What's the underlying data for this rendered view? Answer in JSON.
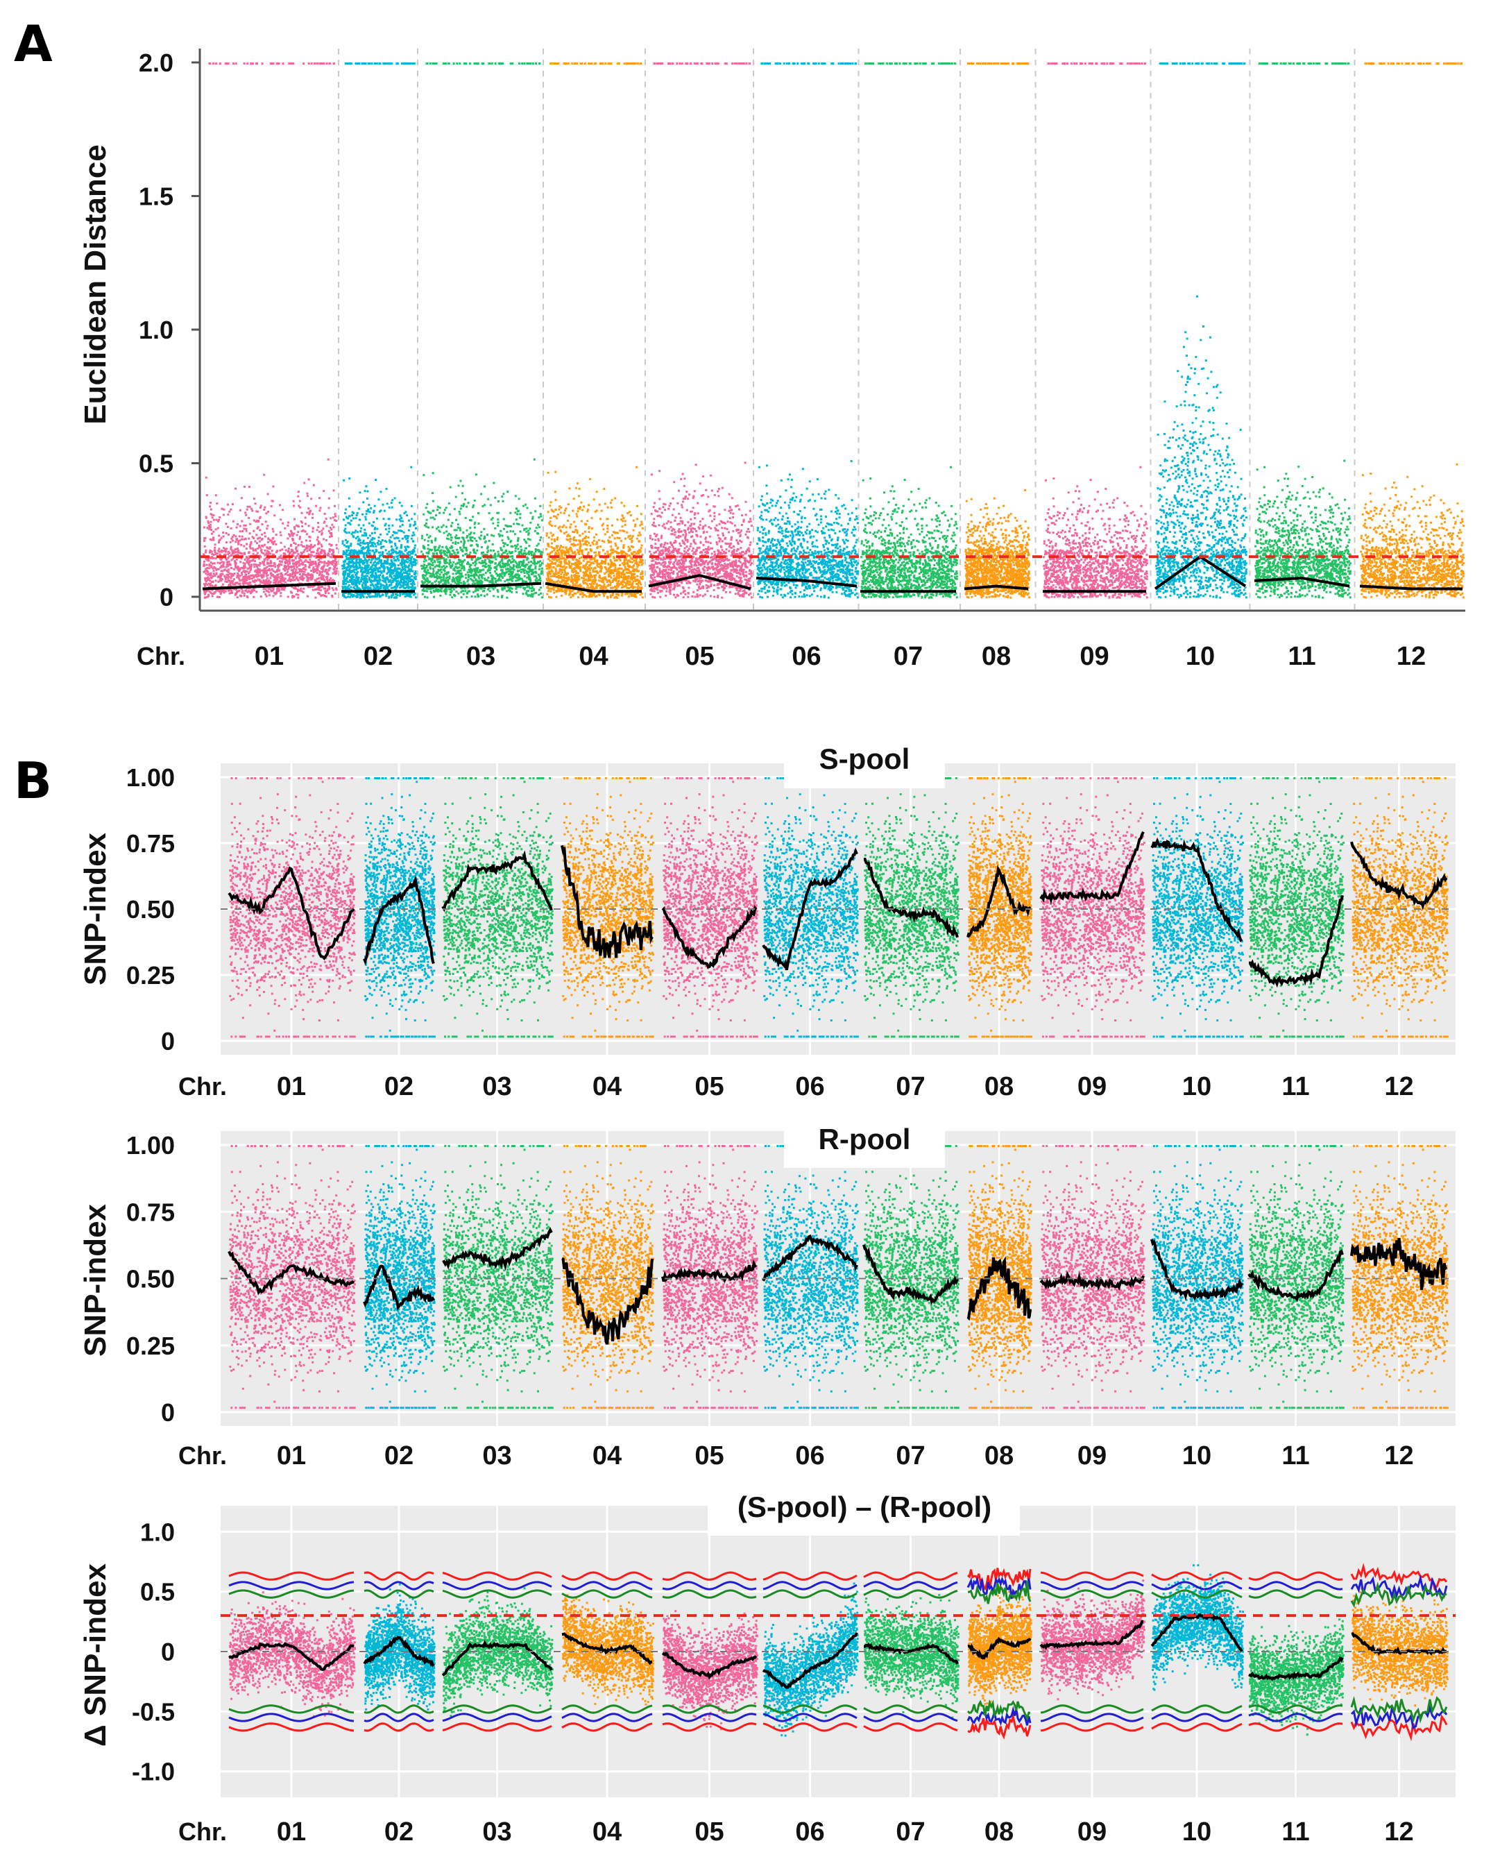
{
  "figure": {
    "colors": {
      "pink": "#f2669c",
      "cyan": "#00b7d8",
      "green": "#22c265",
      "orange": "#ff9b10",
      "red": "#ff1a1a",
      "blue": "#1f1fcf",
      "darkgreen": "#1a8a22",
      "black": "#000000",
      "threshold": "#e8281e",
      "panel_bg": "#ebebeb"
    }
  },
  "chart_data": [
    {
      "type": "scatter",
      "panel_letter": "A",
      "title": "",
      "ylabel": "Euclidean Distance",
      "xlabel_prefix": "Chr.",
      "ylim": [
        0,
        2.0
      ],
      "ytick_labels": [
        "2.0",
        "1.5",
        "1.0",
        "0.5",
        "0"
      ],
      "yticks": [
        2.0,
        1.5,
        1.0,
        0.5,
        0
      ],
      "threshold": 0.15,
      "categories": [
        "01",
        "02",
        "03",
        "04",
        "05",
        "06",
        "07",
        "08",
        "09",
        "10",
        "11",
        "12"
      ],
      "series": [
        {
          "name": "fit",
          "values": [
            [
              0.03,
              0.04,
              0.05
            ],
            [
              0.02,
              0.02,
              0.02
            ],
            [
              0.04,
              0.04,
              0.05
            ],
            [
              0.05,
              0.02,
              0.02
            ],
            [
              0.04,
              0.08,
              0.03
            ],
            [
              0.07,
              0.06,
              0.04
            ],
            [
              0.02,
              0.02,
              0.02
            ],
            [
              0.03,
              0.04,
              0.03
            ],
            [
              0.02,
              0.02,
              0.02
            ],
            [
              0.03,
              0.15,
              0.04
            ],
            [
              0.06,
              0.07,
              0.04
            ],
            [
              0.04,
              0.03,
              0.03
            ]
          ]
        }
      ]
    },
    {
      "type": "scatter",
      "panel_letter": "B",
      "title": "S-pool",
      "ylabel": "SNP-index",
      "xlabel_prefix": "Chr.",
      "ylim": [
        0,
        1.0
      ],
      "ytick_labels": [
        "1.00",
        "0.75",
        "0.50",
        "0.25",
        "0"
      ],
      "yticks": [
        1.0,
        0.75,
        0.5,
        0.25,
        0
      ],
      "categories": [
        "01",
        "02",
        "03",
        "04",
        "05",
        "06",
        "07",
        "08",
        "09",
        "10",
        "11",
        "12"
      ],
      "series": [
        {
          "name": "SNP-index fit",
          "values": [
            [
              0.55,
              0.5,
              0.65,
              0.3,
              0.5
            ],
            [
              0.3,
              0.5,
              0.55,
              0.6,
              0.3
            ],
            [
              0.5,
              0.65,
              0.65,
              0.7,
              0.5
            ],
            [
              0.75,
              0.4,
              0.35,
              0.4,
              0.4
            ],
            [
              0.5,
              0.35,
              0.28,
              0.4,
              0.5
            ],
            [
              0.35,
              0.28,
              0.6,
              0.6,
              0.72
            ],
            [
              0.7,
              0.5,
              0.48,
              0.48,
              0.4
            ],
            [
              0.4,
              0.45,
              0.65,
              0.5,
              0.5
            ],
            [
              0.55,
              0.55,
              0.55,
              0.55,
              0.8
            ],
            [
              0.75,
              0.74,
              0.73,
              0.5,
              0.38
            ],
            [
              0.3,
              0.23,
              0.23,
              0.25,
              0.55
            ],
            [
              0.75,
              0.6,
              0.57,
              0.52,
              0.62
            ]
          ]
        }
      ]
    },
    {
      "type": "scatter",
      "title": "R-pool",
      "ylabel": "SNP-index",
      "xlabel_prefix": "Chr.",
      "ylim": [
        0,
        1.0
      ],
      "ytick_labels": [
        "1.00",
        "0.75",
        "0.50",
        "0.25",
        "0"
      ],
      "yticks": [
        1.0,
        0.75,
        0.5,
        0.25,
        0
      ],
      "categories": [
        "01",
        "02",
        "03",
        "04",
        "05",
        "06",
        "07",
        "08",
        "09",
        "10",
        "11",
        "12"
      ],
      "series": [
        {
          "name": "SNP-index fit",
          "values": [
            [
              0.6,
              0.45,
              0.55,
              0.5,
              0.48
            ],
            [
              0.4,
              0.55,
              0.4,
              0.45,
              0.42
            ],
            [
              0.55,
              0.6,
              0.55,
              0.6,
              0.68
            ],
            [
              0.6,
              0.35,
              0.3,
              0.35,
              0.55
            ],
            [
              0.5,
              0.52,
              0.52,
              0.5,
              0.55
            ],
            [
              0.5,
              0.58,
              0.65,
              0.62,
              0.55
            ],
            [
              0.62,
              0.45,
              0.45,
              0.42,
              0.5
            ],
            [
              0.35,
              0.5,
              0.55,
              0.45,
              0.4
            ],
            [
              0.48,
              0.5,
              0.48,
              0.48,
              0.5
            ],
            [
              0.65,
              0.45,
              0.44,
              0.44,
              0.48
            ],
            [
              0.52,
              0.45,
              0.43,
              0.45,
              0.6
            ],
            [
              0.6,
              0.58,
              0.6,
              0.5,
              0.55
            ]
          ]
        }
      ]
    },
    {
      "type": "scatter",
      "title": "(S-pool) – (R-pool)",
      "ylabel": "Δ SNP-index",
      "xlabel_prefix": "Chr.",
      "ylim": [
        -1.1,
        1.1
      ],
      "ytick_labels": [
        "1.0",
        "0.5",
        "0",
        "-0.5",
        "-1.0"
      ],
      "yticks": [
        1.0,
        0.5,
        0,
        -0.5,
        -1.0
      ],
      "threshold": 0.3,
      "confidence_bands": {
        "99%": "red",
        "95%": "blue",
        "90%": "darkgreen"
      },
      "categories": [
        "01",
        "02",
        "03",
        "04",
        "05",
        "06",
        "07",
        "08",
        "09",
        "10",
        "11",
        "12"
      ],
      "series": [
        {
          "name": "Δ SNP-index fit",
          "values": [
            [
              -0.05,
              0.05,
              0.05,
              -0.15,
              0.05
            ],
            [
              -0.1,
              0.0,
              0.12,
              -0.05,
              -0.1
            ],
            [
              -0.2,
              0.05,
              0.05,
              0.05,
              -0.15
            ],
            [
              0.15,
              0.05,
              0.0,
              0.05,
              -0.1
            ],
            [
              0.0,
              -0.15,
              -0.2,
              -0.1,
              -0.05
            ],
            [
              -0.15,
              -0.3,
              -0.15,
              -0.05,
              0.15
            ],
            [
              0.05,
              0.02,
              0.0,
              0.05,
              -0.1
            ],
            [
              0.05,
              -0.05,
              0.1,
              0.05,
              0.1
            ],
            [
              0.05,
              0.05,
              0.07,
              0.07,
              0.25
            ],
            [
              0.05,
              0.27,
              0.3,
              0.28,
              0.0
            ],
            [
              -0.2,
              -0.22,
              -0.2,
              -0.2,
              -0.05
            ],
            [
              0.15,
              0.0,
              0.0,
              0.0,
              0.0
            ]
          ]
        }
      ]
    }
  ]
}
